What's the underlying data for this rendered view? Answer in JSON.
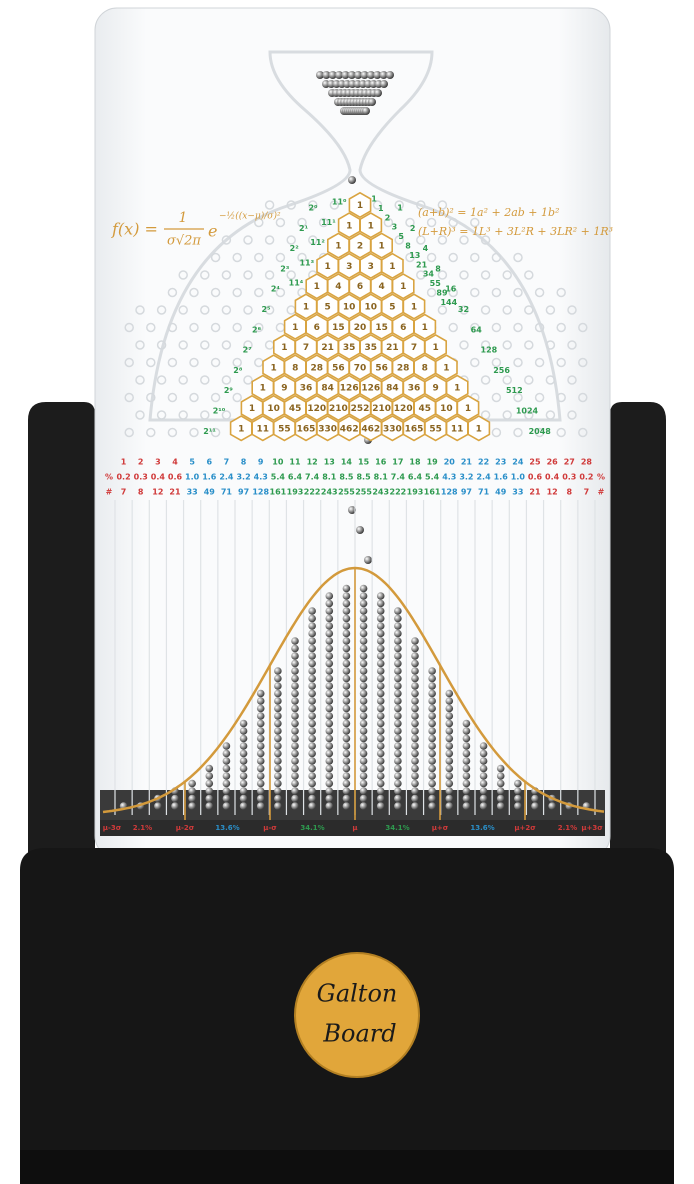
{
  "formulas": {
    "gaussian": {
      "lhs": "f(x) =",
      "numerator": "1",
      "denominator": "σ√2π",
      "base": "e",
      "exponent": "−½((x−μ)/σ)²"
    },
    "binomial_2": "(a+b)² = 1a² + 2ab + 1b²",
    "binomial_3": "(L+R)³ = 1L³ + 3L²R + 3LR² + 1R³"
  },
  "pascal_triangle": [
    [
      1
    ],
    [
      1,
      1
    ],
    [
      1,
      2,
      1
    ],
    [
      1,
      3,
      3,
      1
    ],
    [
      1,
      4,
      6,
      4,
      1
    ],
    [
      1,
      5,
      10,
      10,
      5,
      1
    ],
    [
      1,
      6,
      15,
      20,
      15,
      6,
      1
    ],
    [
      1,
      7,
      21,
      35,
      35,
      21,
      7,
      1
    ],
    [
      1,
      8,
      28,
      56,
      70,
      56,
      28,
      8,
      1
    ],
    [
      1,
      9,
      36,
      84,
      126,
      126,
      84,
      36,
      9,
      1
    ],
    [
      1,
      10,
      45,
      120,
      210,
      252,
      210,
      120,
      45,
      10,
      1
    ],
    [
      1,
      11,
      55,
      165,
      330,
      462,
      462,
      330,
      165,
      55,
      11,
      1
    ]
  ],
  "row_powers": [
    "2⁰",
    "2¹",
    "2²",
    "2³",
    "2⁴",
    "2⁵",
    "2⁶",
    "2⁷",
    "2⁸",
    "2⁹",
    "2¹⁰",
    "2¹¹"
  ],
  "row_sums": [
    1,
    2,
    4,
    8,
    16,
    32,
    64,
    128,
    256,
    512,
    1024,
    2048
  ],
  "powers_of_11": [
    "11⁰",
    "11¹",
    "11²",
    "11³",
    "11⁴"
  ],
  "fibonacci": [
    1,
    1,
    2,
    3,
    5,
    8,
    13,
    21,
    34,
    55,
    89,
    144
  ],
  "bins": {
    "numbers": [
      1,
      2,
      3,
      4,
      5,
      6,
      7,
      8,
      9,
      10,
      11,
      12,
      13,
      14,
      15,
      16,
      17,
      18,
      19,
      20,
      21,
      22,
      23,
      24,
      25,
      26,
      27,
      28
    ],
    "percent_symbol": "%",
    "percents": [
      "0.2",
      "0.3",
      "0.4",
      "0.6",
      "1.0",
      "1.6",
      "2.4",
      "3.2",
      "4.3",
      "5.4",
      "6.4",
      "7.4",
      "8.1",
      "8.5",
      "8.5",
      "8.1",
      "7.4",
      "6.4",
      "5.4",
      "4.3",
      "3.2",
      "2.4",
      "1.6",
      "1.0",
      "0.6",
      "0.4",
      "0.3",
      "0.2"
    ],
    "count_symbol": "#",
    "counts": [
      7,
      8,
      12,
      21,
      33,
      49,
      71,
      97,
      128,
      161,
      193,
      222,
      243,
      255,
      255,
      243,
      222,
      193,
      161,
      128,
      97,
      71,
      49,
      33,
      21,
      12,
      8,
      7
    ]
  },
  "sigma_scale": [
    "μ-3σ",
    "2.1%",
    "μ-2σ",
    "13.6%",
    "μ-σ",
    "34.1%",
    "μ",
    "34.1%",
    "μ+σ",
    "13.6%",
    "μ+2σ",
    "2.1%",
    "μ+3σ"
  ],
  "logo": {
    "line1": "Galton",
    "line2": "Board"
  }
}
